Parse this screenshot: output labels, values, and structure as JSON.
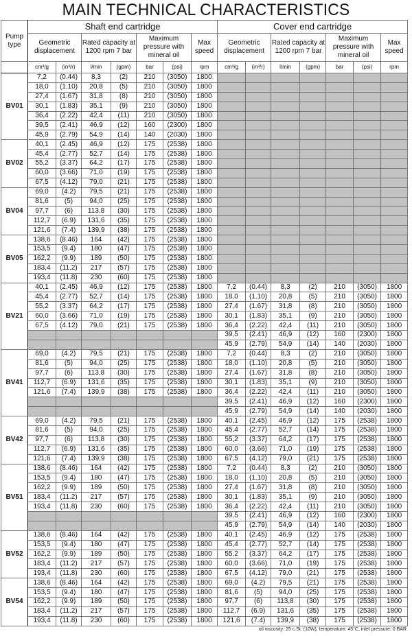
{
  "title": "MAIN TECHNICAL CHARACTERISTICS",
  "headers": {
    "pump_type": "Pump type",
    "shaft": "Shaft end cartridge",
    "cover": "Cover end cartridge",
    "geometric": "Geometric displacement",
    "rated": "Rated capacity at 1200 rpm 7 bar",
    "pressure": "Maximum pressure with mineral oil",
    "speed": "Max speed",
    "units": [
      "cm³/g",
      "(in³/r)",
      "l/min",
      "(gpm)",
      "bar",
      "(psi)",
      "rpm"
    ]
  },
  "colors": {
    "empty_cell": "#c2c2c2"
  },
  "groups": [
    {
      "pump": "BV01",
      "shaft": [
        [
          "7,2",
          "(0.44)",
          "8,3",
          "(2)",
          "210",
          "(3050)",
          "1800"
        ],
        [
          "18,0",
          "(1.10)",
          "20,8",
          "(5)",
          "210",
          "(3050)",
          "1800"
        ],
        [
          "27,4",
          "(1.67)",
          "31,8",
          "(8)",
          "210",
          "(3050)",
          "1800"
        ],
        [
          "30,1",
          "(1.83)",
          "35,1",
          "(9)",
          "210",
          "(3050)",
          "1800"
        ],
        [
          "36,4",
          "(2.22)",
          "42,4",
          "(11)",
          "210",
          "(3050)",
          "1800"
        ],
        [
          "39,5",
          "(2.41)",
          "46,9",
          "(12)",
          "160",
          "(2300)",
          "1800"
        ],
        [
          "45,9",
          "(2.79)",
          "54,9",
          "(14)",
          "140",
          "(2030)",
          "1800"
        ]
      ],
      "cover": [
        null,
        null,
        null,
        null,
        null,
        null,
        null
      ]
    },
    {
      "pump": "BV02",
      "shaft": [
        [
          "40,1",
          "(2.45)",
          "46,9",
          "(12)",
          "175",
          "(2538)",
          "1800"
        ],
        [
          "45,4",
          "(2.77)",
          "52,7",
          "(14)",
          "175",
          "(2538)",
          "1800"
        ],
        [
          "55,2",
          "(3.37)",
          "64,2",
          "(17)",
          "175",
          "(2538)",
          "1800"
        ],
        [
          "60,0",
          "(3.66)",
          "71,0",
          "(19)",
          "175",
          "(2538)",
          "1800"
        ],
        [
          "67,5",
          "(4.12)",
          "79,0",
          "(21)",
          "175",
          "(2538)",
          "1800"
        ]
      ],
      "cover": [
        null,
        null,
        null,
        null,
        null
      ]
    },
    {
      "pump": "BV04",
      "shaft": [
        [
          "69,0",
          "(4.2)",
          "79,5",
          "(21)",
          "175",
          "(2538)",
          "1800"
        ],
        [
          "81,6",
          "(5)",
          "94,0",
          "(25)",
          "175",
          "(2538)",
          "1800"
        ],
        [
          "97,7",
          "(6)",
          "113,8",
          "(30)",
          "175",
          "(2538)",
          "1800"
        ],
        [
          "112,7",
          "(6.9)",
          "131,6",
          "(35)",
          "175",
          "(2538)",
          "1800"
        ],
        [
          "121,6",
          "(7.4)",
          "139,9",
          "(38)",
          "175",
          "(2538)",
          "1800"
        ]
      ],
      "cover": [
        null,
        null,
        null,
        null,
        null
      ]
    },
    {
      "pump": "BV05",
      "shaft": [
        [
          "138,6",
          "(8.46)",
          "164",
          "(42)",
          "175",
          "(2538)",
          "1800"
        ],
        [
          "153,5",
          "(9.4)",
          "180",
          "(47)",
          "175",
          "(2538)",
          "1800"
        ],
        [
          "162,2",
          "(9.9)",
          "189",
          "(50)",
          "175",
          "(2538)",
          "1800"
        ],
        [
          "183,4",
          "(11.2)",
          "217",
          "(57)",
          "175",
          "(2538)",
          "1800"
        ],
        [
          "193,4",
          "(11.8)",
          "230",
          "(60)",
          "175",
          "(2538)",
          "1800"
        ]
      ],
      "cover": [
        null,
        null,
        null,
        null,
        null
      ]
    },
    {
      "pump": "BV21",
      "shaft": [
        [
          "40,1",
          "(2.45)",
          "46,9",
          "(12)",
          "175",
          "(2538)",
          "1800"
        ],
        [
          "45,4",
          "(2.77)",
          "52,7",
          "(14)",
          "175",
          "(2538)",
          "1800"
        ],
        [
          "55,2",
          "(3.37)",
          "64,2",
          "(17)",
          "175",
          "(2538)",
          "1800"
        ],
        [
          "60,0",
          "(3.66)",
          "71,0",
          "(19)",
          "175",
          "(2538)",
          "1800"
        ],
        [
          "67,5",
          "(4.12)",
          "79,0",
          "(21)",
          "175",
          "(2538)",
          "1800"
        ],
        null,
        null
      ],
      "cover": [
        [
          "7,2",
          "(0.44)",
          "8,3",
          "(2)",
          "210",
          "(3050)",
          "1800"
        ],
        [
          "18,0",
          "(1.10)",
          "20,8",
          "(5)",
          "210",
          "(3050)",
          "1800"
        ],
        [
          "27,4",
          "(1.67)",
          "31,8",
          "(8)",
          "210",
          "(3050)",
          "1800"
        ],
        [
          "30,1",
          "(1.83)",
          "35,1",
          "(9)",
          "210",
          "(3050)",
          "1800"
        ],
        [
          "36,4",
          "(2.22)",
          "42,4",
          "(11)",
          "210",
          "(3050)",
          "1800"
        ],
        [
          "39,5",
          "(2.41)",
          "46,9",
          "(12)",
          "160",
          "(2300)",
          "1800"
        ],
        [
          "45,9",
          "(2.79)",
          "54,9",
          "(14)",
          "140",
          "(2030)",
          "1800"
        ]
      ]
    },
    {
      "pump": "BV41",
      "shaft": [
        [
          "69,0",
          "(4.2)",
          "79,5",
          "(21)",
          "175",
          "(2538)",
          "1800"
        ],
        [
          "81,6",
          "(5)",
          "94,0",
          "(25)",
          "175",
          "(2538)",
          "1800"
        ],
        [
          "97,7",
          "(6)",
          "113,8",
          "(30)",
          "175",
          "(2538)",
          "1800"
        ],
        [
          "112,7",
          "(6.9)",
          "131,6",
          "(35)",
          "175",
          "(2538)",
          "1800"
        ],
        [
          "121,6",
          "(7.4)",
          "139,9",
          "(38)",
          "175",
          "(2538)",
          "1800"
        ],
        null,
        null
      ],
      "cover": [
        [
          "7,2",
          "(0.44)",
          "8,3",
          "(2)",
          "210",
          "(3050)",
          "1800"
        ],
        [
          "18,0",
          "(1.10)",
          "20,8",
          "(5)",
          "210",
          "(3050)",
          "1800"
        ],
        [
          "27,4",
          "(1.67)",
          "31,8",
          "(8)",
          "210",
          "(3050)",
          "1800"
        ],
        [
          "30,1",
          "(1.83)",
          "35,1",
          "(9)",
          "210",
          "(3050)",
          "1800"
        ],
        [
          "36,4",
          "(2.22)",
          "42,4",
          "(11)",
          "210",
          "(3050)",
          "1800"
        ],
        [
          "39,5",
          "(2.41)",
          "46,9",
          "(12)",
          "160",
          "(2300)",
          "1800"
        ],
        [
          "45,9",
          "(2.79)",
          "54,9",
          "(14)",
          "140",
          "(2030)",
          "1800"
        ]
      ]
    },
    {
      "pump": "BV42",
      "shaft": [
        [
          "69,0",
          "(4.2)",
          "79,5",
          "(21)",
          "175",
          "(2538)",
          "1800"
        ],
        [
          "81,6",
          "(5)",
          "94,0",
          "(25)",
          "175",
          "(2538)",
          "1800"
        ],
        [
          "97,7",
          "(6)",
          "113,8",
          "(30)",
          "175",
          "(2538)",
          "1800"
        ],
        [
          "112,7",
          "(6.9)",
          "131,6",
          "(35)",
          "175",
          "(2538)",
          "1800"
        ],
        [
          "121,6",
          "(7.4)",
          "139,9",
          "(38)",
          "175",
          "(2538)",
          "1800"
        ]
      ],
      "cover": [
        [
          "40,1",
          "(2.45)",
          "46,9",
          "(12)",
          "175",
          "(2538)",
          "1800"
        ],
        [
          "45,4",
          "(2.77)",
          "52,7",
          "(14)",
          "175",
          "(2538)",
          "1800"
        ],
        [
          "55,2",
          "(3.37)",
          "64,2",
          "(17)",
          "175",
          "(2538)",
          "1800"
        ],
        [
          "60,0",
          "(3.66)",
          "71,0",
          "(19)",
          "175",
          "(2538)",
          "1800"
        ],
        [
          "67,5",
          "(4.12)",
          "79,0",
          "(21)",
          "175",
          "(2538)",
          "1800"
        ]
      ]
    },
    {
      "pump": "BV51",
      "shaft": [
        [
          "138,6",
          "(8.46)",
          "164",
          "(42)",
          "175",
          "(2538)",
          "1800"
        ],
        [
          "153,5",
          "(9.4)",
          "180",
          "(47)",
          "175",
          "(2538)",
          "1800"
        ],
        [
          "162,2",
          "(9.9)",
          "189",
          "(50)",
          "175",
          "(2538)",
          "1800"
        ],
        [
          "183,4",
          "(11.2)",
          "217",
          "(57)",
          "175",
          "(2538)",
          "1800"
        ],
        [
          "193,4",
          "(11.8)",
          "230",
          "(60)",
          "175",
          "(2538)",
          "1800"
        ],
        null,
        null
      ],
      "cover": [
        [
          "7,2",
          "(0.44)",
          "8,3",
          "(2)",
          "210",
          "(3050)",
          "1800"
        ],
        [
          "18,0",
          "(1.10)",
          "20,8",
          "(5)",
          "210",
          "(3050)",
          "1800"
        ],
        [
          "27,4",
          "(1.67)",
          "31,8",
          "(8)",
          "210",
          "(3050)",
          "1800"
        ],
        [
          "30,1",
          "(1.83)",
          "35,1",
          "(9)",
          "210",
          "(3050)",
          "1800"
        ],
        [
          "36,4",
          "(2.22)",
          "42,4",
          "(11)",
          "210",
          "(3050)",
          "1800"
        ],
        [
          "39,5",
          "(2.41)",
          "46,9",
          "(12)",
          "160",
          "(2300)",
          "1800"
        ],
        [
          "45,9",
          "(2.79)",
          "54,9",
          "(14)",
          "140",
          "(2030)",
          "1800"
        ]
      ]
    },
    {
      "pump": "BV52",
      "shaft": [
        [
          "138,6",
          "(8.46)",
          "164",
          "(42)",
          "175",
          "(2538)",
          "1800"
        ],
        [
          "153,5",
          "(9.4)",
          "180",
          "(47)",
          "175",
          "(2538)",
          "1800"
        ],
        [
          "162,2",
          "(9.9)",
          "189",
          "(50)",
          "175",
          "(2538)",
          "1800"
        ],
        [
          "183,4",
          "(11.2)",
          "217",
          "(57)",
          "175",
          "(2538)",
          "1800"
        ],
        [
          "193,4",
          "(11.8)",
          "230",
          "(60)",
          "175",
          "(2538)",
          "1800"
        ]
      ],
      "cover": [
        [
          "40,1",
          "(2.45)",
          "46,9",
          "(12)",
          "175",
          "(2538)",
          "1800"
        ],
        [
          "45,4",
          "(2.77)",
          "52,7",
          "(14)",
          "175",
          "(2538)",
          "1800"
        ],
        [
          "55,2",
          "(3.37)",
          "64,2",
          "(17)",
          "175",
          "(2538)",
          "1800"
        ],
        [
          "60,0",
          "(3.66)",
          "71,0",
          "(19)",
          "175",
          "(2538)",
          "1800"
        ],
        [
          "67,5",
          "(4.12)",
          "79,0",
          "(21)",
          "175",
          "(2538)",
          "1800"
        ]
      ]
    },
    {
      "pump": "BV54",
      "shaft": [
        [
          "138,6",
          "(8.46)",
          "164",
          "(42)",
          "175",
          "(2538)",
          "1800"
        ],
        [
          "153,5",
          "(9.4)",
          "180",
          "(47)",
          "175",
          "(2538)",
          "1800"
        ],
        [
          "162,2",
          "(9.9)",
          "189",
          "(50)",
          "175",
          "(2538)",
          "1800"
        ],
        [
          "183,4",
          "(11.2)",
          "217",
          "(57)",
          "175",
          "(2538)",
          "1800"
        ],
        [
          "193,4",
          "(11.8)",
          "230",
          "(60)",
          "175",
          "(2538)",
          "1800"
        ]
      ],
      "cover": [
        [
          "69,0",
          "(4.2)",
          "79,5",
          "(21)",
          "175",
          "(2538)",
          "1800"
        ],
        [
          "81,6",
          "(5)",
          "94,0",
          "(25)",
          "175",
          "(2538)",
          "1800"
        ],
        [
          "97,7",
          "(6)",
          "113,8",
          "(30)",
          "175",
          "(2538)",
          "1800"
        ],
        [
          "112,7",
          "(6.9)",
          "131,6",
          "(35)",
          "175",
          "(2538)",
          "1800"
        ],
        [
          "121,6",
          "(7.4)",
          "139,9",
          "(38)",
          "175",
          "(2538)",
          "1800"
        ]
      ]
    }
  ],
  "footnote": "oil viscosity: 25 c.St. (10W), temperature: 45°C, inlet pressure: 0 BAR"
}
